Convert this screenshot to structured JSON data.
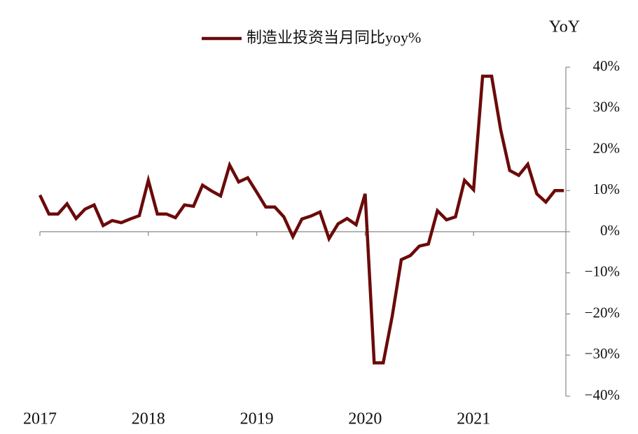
{
  "chart_data": {
    "type": "line",
    "y_label": "YoY",
    "categories": [
      "2017",
      null,
      null,
      null,
      null,
      null,
      null,
      null,
      null,
      null,
      null,
      null,
      "2018",
      null,
      null,
      null,
      null,
      null,
      null,
      null,
      null,
      null,
      null,
      null,
      "2019",
      null,
      null,
      null,
      null,
      null,
      null,
      null,
      null,
      null,
      null,
      null,
      "2020",
      null,
      null,
      null,
      null,
      null,
      null,
      null,
      null,
      null,
      null,
      null,
      "2021",
      null,
      null,
      null,
      null,
      null,
      null,
      null,
      null,
      null,
      null
    ],
    "series": [
      {
        "name": "制造业投资当月同比yoy%",
        "color": "#6b0a0a",
        "values": [
          8.9,
          4.3,
          4.3,
          6.8,
          3.2,
          5.5,
          6.5,
          1.5,
          2.7,
          2.2,
          3.1,
          3.9,
          12.5,
          4.3,
          4.3,
          3.4,
          6.5,
          6.2,
          11.3,
          9.9,
          8.7,
          16.2,
          12.1,
          13.1,
          9.6,
          6.0,
          6.0,
          3.6,
          -1.2,
          3.1,
          3.8,
          4.8,
          -1.7,
          1.9,
          3.2,
          1.7,
          9.2,
          -31.9,
          -31.9,
          -20.5,
          -6.8,
          -5.8,
          -3.5,
          -3.0,
          5.1,
          2.9,
          3.6,
          12.5,
          10.2,
          37.8,
          37.8,
          24.8,
          14.9,
          13.7,
          16.4,
          9.2,
          7.2,
          10.0,
          10.0
        ]
      }
    ],
    "ylim": [
      -40,
      40
    ],
    "yticks": [
      {
        "value": 40,
        "label": "40%"
      },
      {
        "value": 30,
        "label": "30%"
      },
      {
        "value": 20,
        "label": "20%"
      },
      {
        "value": 10,
        "label": "10%"
      },
      {
        "value": 0,
        "label": "0%"
      },
      {
        "value": -10,
        "label": "−10%"
      },
      {
        "value": -20,
        "label": "−20%"
      },
      {
        "value": -30,
        "label": "−30%"
      },
      {
        "value": -40,
        "label": "−40%"
      }
    ],
    "legend": "top"
  }
}
